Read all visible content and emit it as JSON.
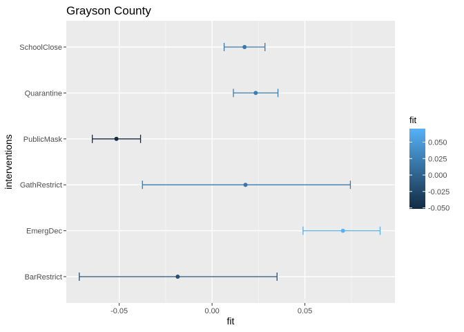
{
  "chart_data": {
    "type": "scatter",
    "title": "Grayson County",
    "xlabel": "fit",
    "ylabel": "interventions",
    "xlim": [
      -0.0785,
      0.0985
    ],
    "x_ticks": [
      -0.05,
      0.0,
      0.05
    ],
    "x_tick_labels": [
      "-0.05",
      "0.00",
      "0.05"
    ],
    "categories": [
      "SchoolClose",
      "Quarantine",
      "PublicMask",
      "GathRestrict",
      "EmergDec",
      "BarRestrict"
    ],
    "points": [
      {
        "label": "SchoolClose",
        "fit": 0.0175,
        "lower": 0.0065,
        "upper": 0.0285
      },
      {
        "label": "Quarantine",
        "fit": 0.0235,
        "lower": 0.0115,
        "upper": 0.0355
      },
      {
        "label": "PublicMask",
        "fit": -0.0515,
        "lower": -0.0645,
        "upper": -0.0385
      },
      {
        "label": "GathRestrict",
        "fit": 0.018,
        "lower": -0.0375,
        "upper": 0.0745
      },
      {
        "label": "EmergDec",
        "fit": 0.0705,
        "lower": 0.049,
        "upper": 0.0905
      },
      {
        "label": "BarRestrict",
        "fit": -0.0185,
        "lower": -0.0715,
        "upper": 0.035
      }
    ],
    "grid": true,
    "legend": {
      "title": "fit",
      "position": "right",
      "range": [
        -0.0515,
        0.0705
      ],
      "ticks": [
        0.05,
        0.025,
        0.0,
        -0.025,
        -0.05
      ],
      "tick_labels": [
        "0.050",
        "0.025",
        "0.000",
        "-0.025",
        "-0.050"
      ],
      "color_low": "#132b43",
      "color_high": "#56b1f7"
    },
    "colors": {
      "panel_background": "#ebebeb",
      "grid_major": "#ffffff",
      "grid_minor": "#f5f5f5"
    }
  }
}
